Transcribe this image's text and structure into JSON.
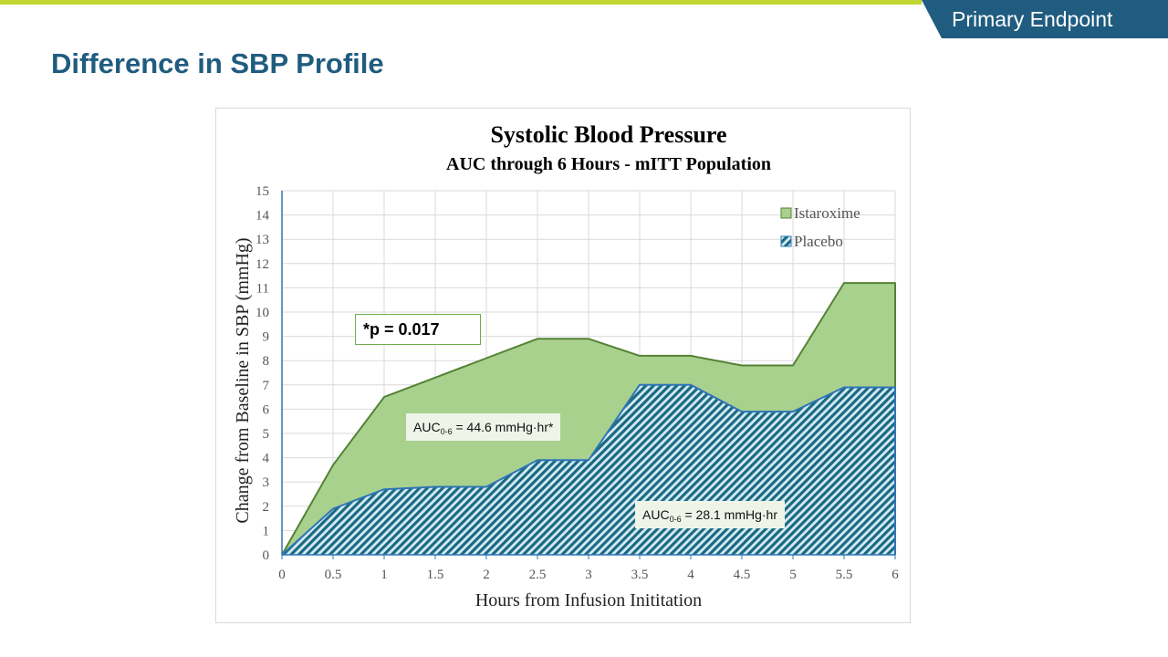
{
  "header": {
    "tag": "Primary Endpoint",
    "title": "Difference in SBP Profile"
  },
  "colors": {
    "brand_blue": "#1f5c7f",
    "accent_green": "#bfd730",
    "istaroxime_fill": "#a9d18e",
    "istaroxime_line": "#548235",
    "placebo_line": "#2e75b6",
    "placebo_hatch": "#1b6a84"
  },
  "annotations": {
    "p_value": "*p = 0.017",
    "auc_istaroxime_prefix": "AUC",
    "auc_istaroxime_sub": "0-6",
    "auc_istaroxime_value": " = 44.6 mmHg·hr*",
    "auc_placebo_prefix": "AUC",
    "auc_placebo_sub": "0-6",
    "auc_placebo_value": " = 28.1 mmHg·hr"
  },
  "chart_data": {
    "type": "area",
    "title": "Systolic Blood Pressure",
    "subtitle": "AUC through 6 Hours - mITT Population",
    "xlabel": "Hours from Infusion Inititation",
    "ylabel": "Change from Baseline in SBP (mmHg)",
    "xlim": [
      0,
      6
    ],
    "ylim": [
      0,
      15
    ],
    "x_ticks": [
      "0",
      "0.5",
      "1",
      "1.5",
      "2",
      "2.5",
      "3",
      "3.5",
      "4",
      "4.5",
      "5",
      "5.5",
      "6"
    ],
    "y_ticks": [
      "0",
      "1",
      "2",
      "3",
      "4",
      "5",
      "6",
      "7",
      "8",
      "9",
      "10",
      "11",
      "12",
      "13",
      "14",
      "15"
    ],
    "grid": true,
    "legend_position": "top-right",
    "x": [
      0,
      0.5,
      1,
      1.5,
      2,
      2.5,
      3,
      3.5,
      4,
      4.5,
      5,
      5.5,
      6
    ],
    "series": [
      {
        "name": "Istaroxime",
        "values": [
          0,
          3.7,
          6.5,
          7.3,
          8.1,
          8.9,
          8.9,
          8.2,
          8.2,
          7.8,
          7.8,
          11.2,
          11.2
        ]
      },
      {
        "name": "Placebo",
        "values": [
          0,
          1.9,
          2.7,
          2.8,
          2.8,
          3.9,
          3.9,
          7.0,
          7.0,
          5.9,
          5.9,
          6.9,
          6.9
        ]
      }
    ]
  }
}
